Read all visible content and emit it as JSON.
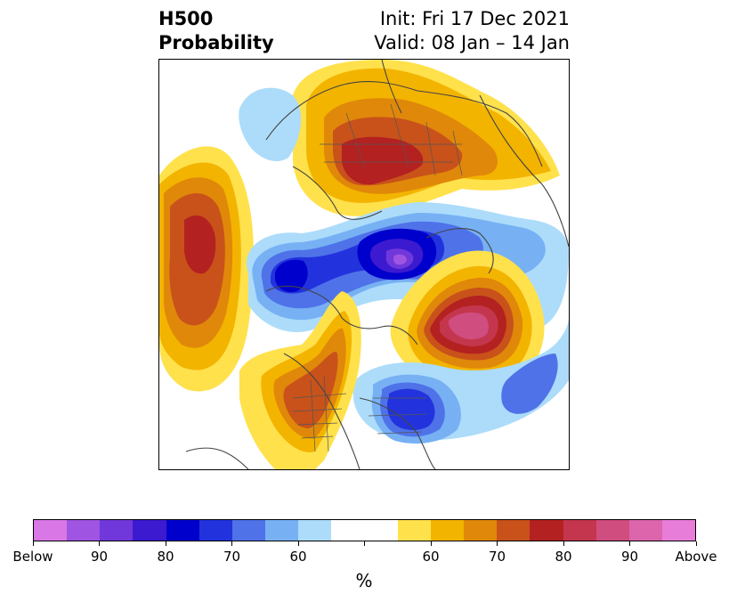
{
  "header": {
    "title_line1": "H500",
    "title_line2": "Probability",
    "init": "Init: Fri 17 Dec 2021",
    "valid": "Valid: 08 Jan – 14 Jan"
  },
  "map": {
    "projection": "north-polar-stereographic",
    "anomalies": [
      {
        "region": "eastern-europe-russia",
        "category": "above",
        "peak_percent": 80
      },
      {
        "region": "north-pacific",
        "category": "above",
        "peak_percent": 80
      },
      {
        "region": "north-atlantic-greenland",
        "category": "above",
        "peak_percent": 90
      },
      {
        "region": "western-north-america",
        "category": "above",
        "peak_percent": 75
      },
      {
        "region": "arctic-siberia",
        "category": "below",
        "peak_percent": 95
      },
      {
        "region": "east-asia",
        "category": "below",
        "peak_percent": 80
      },
      {
        "region": "eastern-north-america",
        "category": "below",
        "peak_percent": 80
      },
      {
        "region": "northwest-pacific",
        "category": "below",
        "peak_percent": 60
      }
    ]
  },
  "colorbar": {
    "colors": [
      "#d977e6",
      "#9f55e1",
      "#7038db",
      "#3c1acf",
      "#0000cc",
      "#2233dd",
      "#4f72e8",
      "#77b1f4",
      "#acdcfa",
      "#ffffff",
      "#ffffff",
      "#ffe14c",
      "#f3b400",
      "#e0880a",
      "#c8521a",
      "#b42121",
      "#c4364d",
      "#d04d80",
      "#dc65ac",
      "#e87dd9"
    ],
    "labels": [
      "Below",
      "90",
      "80",
      "70",
      "60",
      "60",
      "70",
      "80",
      "90",
      "Above"
    ],
    "unit": "%"
  }
}
